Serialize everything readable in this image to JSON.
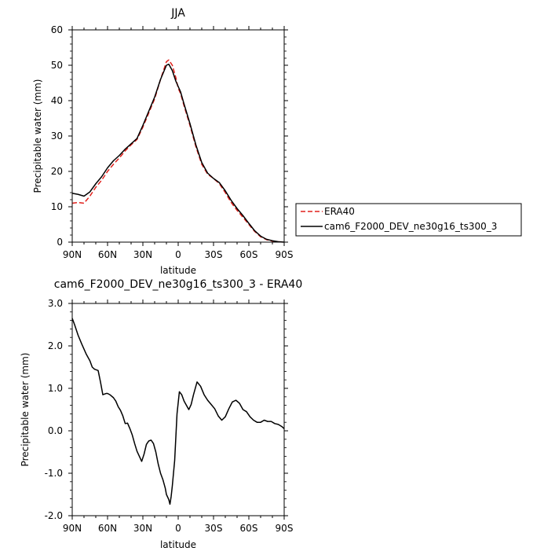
{
  "chart_data": [
    {
      "type": "line",
      "title": "JJA",
      "xlabel": "latitude",
      "ylabel": "Precipitable water (mm)",
      "xlim": [
        90,
        -90
      ],
      "ylim": [
        0,
        60
      ],
      "x_ticks": [
        90,
        60,
        30,
        0,
        -30,
        -60,
        -90
      ],
      "x_tick_labels": [
        "90N",
        "60N",
        "30N",
        "0",
        "30S",
        "60S",
        "90S"
      ],
      "y_ticks": [
        0,
        10,
        20,
        30,
        40,
        50,
        60
      ],
      "y_tick_labels": [
        "0",
        "10",
        "20",
        "30",
        "40",
        "50",
        "60"
      ],
      "legend_position": "right",
      "series": [
        {
          "name": "ERA40",
          "color": "#e0201b",
          "dash": "dashed",
          "x": [
            90,
            85,
            80,
            75,
            70,
            65,
            60,
            55,
            50,
            45,
            40,
            35,
            30,
            25,
            20,
            15,
            10,
            8,
            5,
            2,
            0,
            -2,
            -5,
            -10,
            -15,
            -20,
            -25,
            -30,
            -35,
            -40,
            -45,
            -50,
            -55,
            -60,
            -65,
            -70,
            -75,
            -80,
            -85,
            -90
          ],
          "y": [
            11.0,
            11.2,
            11.0,
            13.0,
            15.5,
            17.5,
            20.0,
            22.0,
            23.8,
            25.8,
            27.5,
            29.0,
            32.5,
            36.5,
            40.5,
            46.0,
            51.0,
            51.5,
            50.0,
            46.5,
            43.5,
            42.0,
            38.5,
            33.0,
            27.0,
            22.0,
            19.2,
            18.0,
            16.5,
            14.0,
            11.2,
            9.0,
            7.0,
            5.0,
            3.0,
            1.5,
            0.7,
            0.3,
            0.1,
            0.0
          ]
        },
        {
          "name": "cam6_F2000_DEV_ne30g16_ts300_3",
          "color": "#000000",
          "dash": "solid",
          "x": [
            90,
            85,
            80,
            75,
            70,
            65,
            60,
            55,
            50,
            45,
            40,
            35,
            30,
            25,
            20,
            15,
            10,
            8,
            5,
            2,
            0,
            -2,
            -5,
            -10,
            -15,
            -20,
            -25,
            -30,
            -35,
            -40,
            -45,
            -50,
            -55,
            -60,
            -65,
            -70,
            -75,
            -80,
            -85,
            -90
          ],
          "y": [
            13.8,
            13.5,
            13.0,
            14.2,
            16.5,
            18.5,
            21.0,
            23.0,
            24.5,
            26.3,
            27.8,
            29.3,
            33.0,
            37.0,
            41.0,
            46.0,
            50.0,
            50.3,
            48.5,
            45.5,
            44.0,
            42.5,
            39.0,
            33.5,
            27.5,
            22.5,
            19.5,
            18.0,
            16.8,
            14.5,
            11.8,
            9.5,
            7.5,
            5.3,
            3.2,
            1.7,
            0.8,
            0.4,
            0.1,
            0.0
          ]
        }
      ]
    },
    {
      "type": "line",
      "title": "cam6_F2000_DEV_ne30g16_ts300_3 - ERA40",
      "xlabel": "latitude",
      "ylabel": "Precipitable water (mm)",
      "xlim": [
        90,
        -90
      ],
      "ylim": [
        -2,
        3
      ],
      "x_ticks": [
        90,
        60,
        30,
        0,
        -30,
        -60,
        -90
      ],
      "x_tick_labels": [
        "90N",
        "60N",
        "30N",
        "0",
        "30S",
        "60S",
        "90S"
      ],
      "y_ticks": [
        -2,
        -1,
        0,
        1,
        2,
        3
      ],
      "y_tick_labels": [
        "-2.0",
        "-1.0",
        "0.0",
        "1.0",
        "2.0",
        "3.0"
      ],
      "series": [
        {
          "color": "#000000",
          "dash": "solid",
          "x": [
            90,
            88,
            85,
            82,
            78,
            75,
            73,
            71,
            68,
            66,
            64,
            61,
            60,
            58,
            55,
            53,
            51,
            49,
            47,
            45,
            43,
            41,
            39,
            37,
            35,
            33,
            31,
            29,
            27,
            25,
            23,
            21,
            19,
            17,
            15,
            13,
            11,
            10,
            8,
            7,
            6,
            5,
            3,
            1,
            -1,
            -3,
            -5,
            -7,
            -9,
            -11,
            -13,
            -16,
            -19,
            -22,
            -25,
            -28,
            -31,
            -34,
            -37,
            -40,
            -43,
            -46,
            -49,
            -52,
            -55,
            -58,
            -61,
            -64,
            -67,
            -70,
            -73,
            -76,
            -79,
            -82,
            -85,
            -88,
            -90
          ],
          "y": [
            2.65,
            2.5,
            2.25,
            2.05,
            1.8,
            1.65,
            1.5,
            1.45,
            1.42,
            1.15,
            0.85,
            0.88,
            0.88,
            0.85,
            0.78,
            0.7,
            0.57,
            0.48,
            0.35,
            0.17,
            0.18,
            0.05,
            -0.1,
            -0.3,
            -0.48,
            -0.6,
            -0.72,
            -0.55,
            -0.32,
            -0.24,
            -0.22,
            -0.3,
            -0.5,
            -0.78,
            -1.0,
            -1.15,
            -1.35,
            -1.5,
            -1.62,
            -1.73,
            -1.55,
            -1.3,
            -0.7,
            0.4,
            0.92,
            0.85,
            0.7,
            0.6,
            0.5,
            0.62,
            0.85,
            1.15,
            1.05,
            0.85,
            0.72,
            0.62,
            0.52,
            0.35,
            0.25,
            0.33,
            0.52,
            0.68,
            0.72,
            0.65,
            0.5,
            0.45,
            0.33,
            0.25,
            0.2,
            0.2,
            0.25,
            0.22,
            0.22,
            0.17,
            0.15,
            0.1,
            0.05
          ]
        }
      ]
    }
  ]
}
